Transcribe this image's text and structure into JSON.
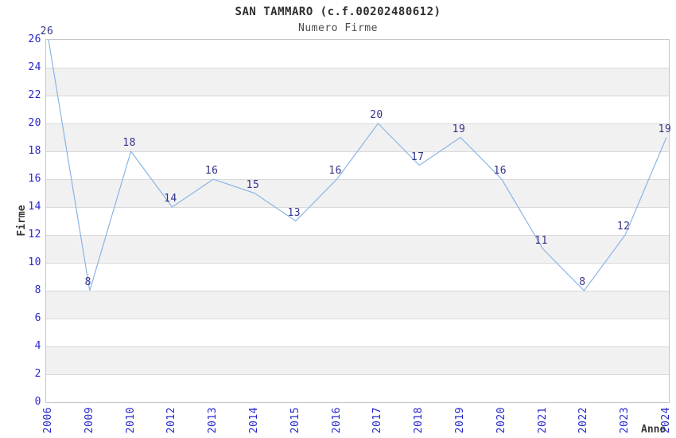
{
  "header": {
    "title": "SAN TAMMARO (c.f.00202480612)",
    "subtitle": "Numero Firme"
  },
  "chart_data": {
    "type": "line",
    "title": "SAN TAMMARO (c.f.00202480612)",
    "subtitle": "Numero Firme",
    "xlabel": "Anno",
    "ylabel": "Firme",
    "categories": [
      "2006",
      "2009",
      "2010",
      "2012",
      "2013",
      "2014",
      "2015",
      "2016",
      "2017",
      "2018",
      "2019",
      "2020",
      "2021",
      "2022",
      "2023",
      "2024"
    ],
    "values": [
      26,
      8,
      18,
      14,
      16,
      15,
      13,
      16,
      20,
      17,
      19,
      16,
      11,
      8,
      12,
      19
    ],
    "ylim": [
      0,
      26
    ],
    "ytick_step": 2,
    "show_point_labels": true,
    "grid": "horizontal",
    "banded_background": true,
    "legend_position": "none",
    "colors": {
      "line": "#89b5e5",
      "point_label": "#333388",
      "tick_label": "#2626cc",
      "axis_title": "#3a3a3a",
      "band_gray": "#f1f1f1",
      "gridline": "#d9d9d9",
      "spine": "#c6c6c6",
      "background": "#ffffff"
    }
  }
}
